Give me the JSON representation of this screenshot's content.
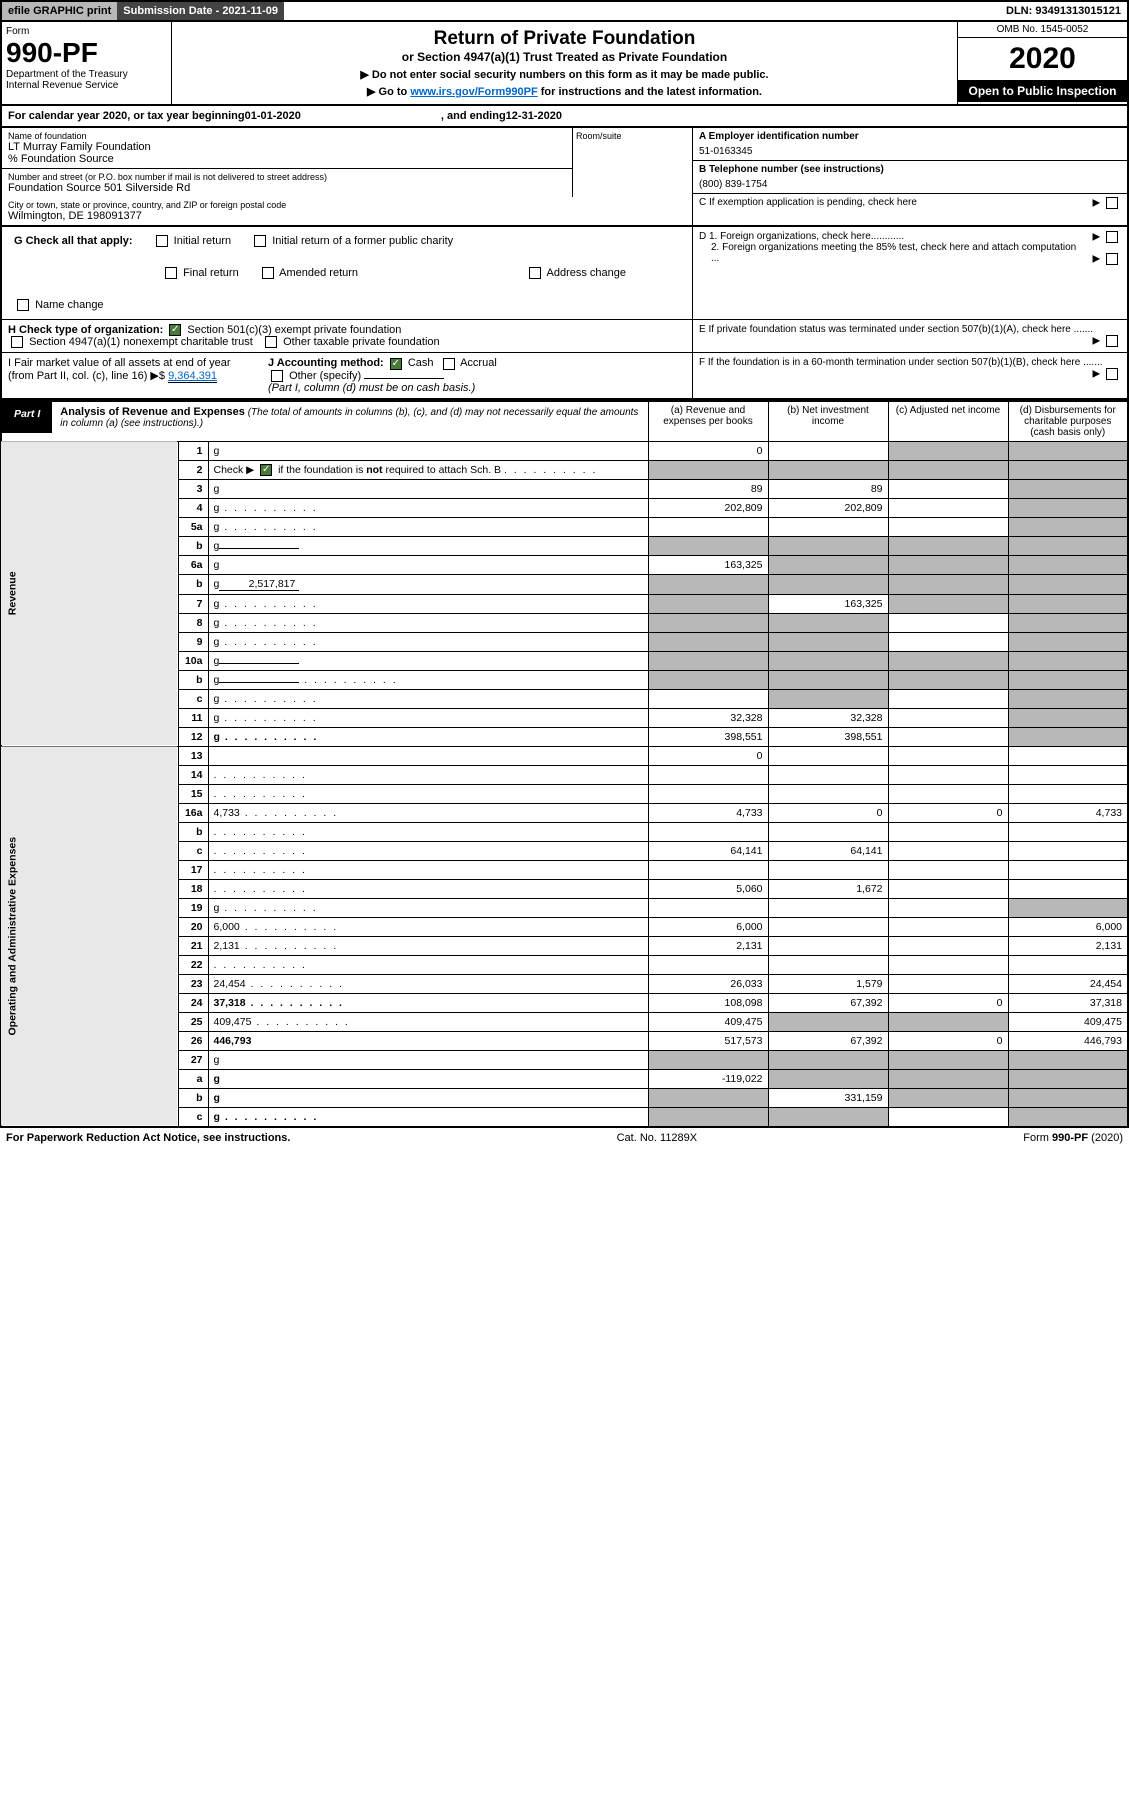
{
  "topbar": {
    "efile": "efile GRAPHIC print",
    "submission": "Submission Date - 2021-11-09",
    "dln": "DLN: 93491313015121"
  },
  "header": {
    "form_label": "Form",
    "form_num": "990-PF",
    "dept": "Department of the Treasury\nInternal Revenue Service",
    "title": "Return of Private Foundation",
    "subtitle": "or Section 4947(a)(1) Trust Treated as Private Foundation",
    "instr1": "▶ Do not enter social security numbers on this form as it may be made public.",
    "instr2_pre": "▶ Go to ",
    "instr2_link": "www.irs.gov/Form990PF",
    "instr2_post": " for instructions and the latest information.",
    "omb": "OMB No. 1545-0052",
    "year": "2020",
    "open": "Open to Public Inspection"
  },
  "cal": {
    "pre": "For calendar year 2020, or tax year beginning ",
    "begin": "01-01-2020",
    "mid": ", and ending ",
    "end": "12-31-2020"
  },
  "info": {
    "name_label": "Name of foundation",
    "name": "LT Murray Family Foundation",
    "care_of": "% Foundation Source",
    "addr_label": "Number and street (or P.O. box number if mail is not delivered to street address)",
    "addr": "Foundation Source 501 Silverside Rd",
    "room_label": "Room/suite",
    "city_label": "City or town, state or province, country, and ZIP or foreign postal code",
    "city": "Wilmington, DE  198091377",
    "ein_label": "A Employer identification number",
    "ein": "51-0163345",
    "phone_label": "B Telephone number (see instructions)",
    "phone": "(800) 839-1754",
    "c_label": "C If exemption application is pending, check here",
    "d1": "D 1. Foreign organizations, check here............",
    "d2": "2. Foreign organizations meeting the 85% test, check here and attach computation ...",
    "e_label": "E  If private foundation status was terminated under section 507(b)(1)(A), check here .......",
    "f_label": "F  If the foundation is in a 60-month termination under section 507(b)(1)(B), check here .......",
    "g_label": "G Check all that apply:",
    "g_opts": [
      "Initial return",
      "Initial return of a former public charity",
      "Final return",
      "Amended return",
      "Address change",
      "Name change"
    ],
    "h_label": "H Check type of organization:",
    "h_opts": [
      "Section 501(c)(3) exempt private foundation",
      "Section 4947(a)(1) nonexempt charitable trust",
      "Other taxable private foundation"
    ],
    "i_label": "I Fair market value of all assets at end of year (from Part II, col. (c), line 16) ▶$",
    "i_val": "9,364,391",
    "j_label": "J Accounting method:",
    "j_cash": "Cash",
    "j_accrual": "Accrual",
    "j_other": "Other (specify)",
    "j_note": "(Part I, column (d) must be on cash basis.)"
  },
  "part1": {
    "label": "Part I",
    "title": "Analysis of Revenue and Expenses",
    "note": "(The total of amounts in columns (b), (c), and (d) may not necessarily equal the amounts in column (a) (see instructions).)",
    "cols": {
      "a": "(a) Revenue and expenses per books",
      "b": "(b) Net investment income",
      "c": "(c) Adjusted net income",
      "d": "(d) Disbursements for charitable purposes (cash basis only)"
    }
  },
  "sections": {
    "revenue": "Revenue",
    "expenses": "Operating and Administrative Expenses"
  },
  "lines": [
    {
      "n": "1",
      "d": "g",
      "a": "0",
      "b": "",
      "c": "g"
    },
    {
      "n": "2",
      "d": "g",
      "dots": true,
      "a": "g",
      "b": "g",
      "c": "g"
    },
    {
      "n": "3",
      "d": "g",
      "a": "89",
      "b": "89",
      "c": ""
    },
    {
      "n": "4",
      "d": "g",
      "dots": true,
      "a": "202,809",
      "b": "202,809",
      "c": ""
    },
    {
      "n": "5a",
      "d": "g",
      "dots": true,
      "a": "",
      "b": "",
      "c": ""
    },
    {
      "n": "b",
      "d": "g",
      "inline": "",
      "a": "g",
      "b": "g",
      "c": "g"
    },
    {
      "n": "6a",
      "d": "g",
      "a": "163,325",
      "b": "g",
      "c": "g"
    },
    {
      "n": "b",
      "d": "g",
      "inline": "2,517,817",
      "a": "g",
      "b": "g",
      "c": "g"
    },
    {
      "n": "7",
      "d": "g",
      "dots": true,
      "a": "g",
      "b": "163,325",
      "c": "g"
    },
    {
      "n": "8",
      "d": "g",
      "dots": true,
      "a": "g",
      "b": "g",
      "c": ""
    },
    {
      "n": "9",
      "d": "g",
      "dots": true,
      "a": "g",
      "b": "g",
      "c": ""
    },
    {
      "n": "10a",
      "d": "g",
      "inline": "",
      "a": "g",
      "b": "g",
      "c": "g"
    },
    {
      "n": "b",
      "d": "g",
      "dots": true,
      "inline": "",
      "a": "g",
      "b": "g",
      "c": "g"
    },
    {
      "n": "c",
      "d": "g",
      "dots": true,
      "a": "",
      "b": "g",
      "c": ""
    },
    {
      "n": "11",
      "d": "g",
      "dots": true,
      "a": "32,328",
      "b": "32,328",
      "c": ""
    },
    {
      "n": "12",
      "d": "g",
      "dots": true,
      "bold": true,
      "a": "398,551",
      "b": "398,551",
      "c": ""
    },
    {
      "n": "13",
      "d": "",
      "a": "0",
      "b": "",
      "c": ""
    },
    {
      "n": "14",
      "d": "",
      "dots": true,
      "a": "",
      "b": "",
      "c": ""
    },
    {
      "n": "15",
      "d": "",
      "dots": true,
      "a": "",
      "b": "",
      "c": ""
    },
    {
      "n": "16a",
      "d": "4,733",
      "dots": true,
      "a": "4,733",
      "b": "0",
      "c": "0"
    },
    {
      "n": "b",
      "d": "",
      "dots": true,
      "a": "",
      "b": "",
      "c": ""
    },
    {
      "n": "c",
      "d": "",
      "dots": true,
      "a": "64,141",
      "b": "64,141",
      "c": ""
    },
    {
      "n": "17",
      "d": "",
      "dots": true,
      "a": "",
      "b": "",
      "c": ""
    },
    {
      "n": "18",
      "d": "",
      "dots": true,
      "a": "5,060",
      "b": "1,672",
      "c": ""
    },
    {
      "n": "19",
      "d": "g",
      "dots": true,
      "a": "",
      "b": "",
      "c": ""
    },
    {
      "n": "20",
      "d": "6,000",
      "dots": true,
      "a": "6,000",
      "b": "",
      "c": ""
    },
    {
      "n": "21",
      "d": "2,131",
      "dots": true,
      "a": "2,131",
      "b": "",
      "c": ""
    },
    {
      "n": "22",
      "d": "",
      "dots": true,
      "a": "",
      "b": "",
      "c": ""
    },
    {
      "n": "23",
      "d": "24,454",
      "dots": true,
      "a": "26,033",
      "b": "1,579",
      "c": ""
    },
    {
      "n": "24",
      "d": "37,318",
      "dots": true,
      "bold": true,
      "a": "108,098",
      "b": "67,392",
      "c": "0"
    },
    {
      "n": "25",
      "d": "409,475",
      "dots": true,
      "a": "409,475",
      "b": "g",
      "c": "g"
    },
    {
      "n": "26",
      "d": "446,793",
      "bold": true,
      "a": "517,573",
      "b": "67,392",
      "c": "0"
    },
    {
      "n": "27",
      "d": "g",
      "a": "g",
      "b": "g",
      "c": "g"
    },
    {
      "n": "a",
      "d": "g",
      "bold": true,
      "a": "-119,022",
      "b": "g",
      "c": "g"
    },
    {
      "n": "b",
      "d": "g",
      "bold": true,
      "a": "g",
      "b": "331,159",
      "c": "g"
    },
    {
      "n": "c",
      "d": "g",
      "dots": true,
      "bold": true,
      "a": "g",
      "b": "g",
      "c": ""
    }
  ],
  "footer": {
    "left": "For Paperwork Reduction Act Notice, see instructions.",
    "mid": "Cat. No. 11289X",
    "right": "Form 990-PF (2020)"
  }
}
